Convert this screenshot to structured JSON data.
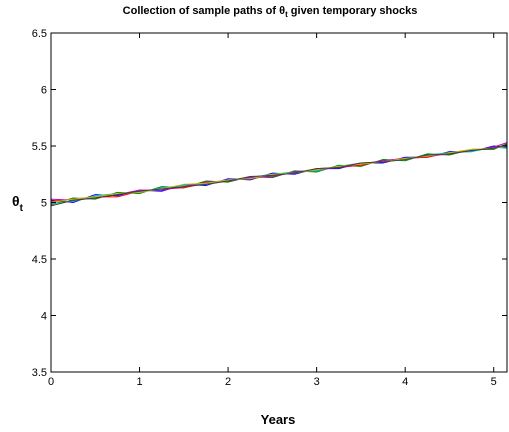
{
  "chart_data": {
    "type": "line",
    "title": {
      "main": "Collection of sample paths of θ",
      "sub": "t",
      "rest": " given temporary shocks"
    },
    "x_label": "Years",
    "y_label": {
      "main": "θ",
      "sub": "t"
    },
    "x": [
      0,
      0.25,
      0.5,
      0.75,
      1,
      1.25,
      1.5,
      1.75,
      2,
      2.25,
      2.5,
      2.75,
      3,
      3.25,
      3.5,
      3.75,
      4,
      4.25,
      4.5,
      4.75,
      5,
      5.15
    ],
    "series": [
      {
        "color": "#0000ff",
        "values": [
          5.02,
          5.0,
          5.07,
          5.06,
          5.11,
          5.1,
          5.16,
          5.15,
          5.21,
          5.2,
          5.26,
          5.25,
          5.3,
          5.3,
          5.35,
          5.35,
          5.4,
          5.4,
          5.45,
          5.45,
          5.5,
          5.49
        ]
      },
      {
        "color": "#008000",
        "values": [
          4.98,
          5.04,
          5.03,
          5.09,
          5.08,
          5.14,
          5.13,
          5.19,
          5.18,
          5.23,
          5.22,
          5.28,
          5.27,
          5.33,
          5.32,
          5.38,
          5.37,
          5.43,
          5.42,
          5.47,
          5.47,
          5.52
        ]
      },
      {
        "color": "#ff0000",
        "values": [
          5.01,
          5.03,
          5.05,
          5.05,
          5.1,
          5.12,
          5.13,
          5.17,
          5.2,
          5.21,
          5.24,
          5.26,
          5.3,
          5.31,
          5.33,
          5.37,
          5.39,
          5.4,
          5.44,
          5.46,
          5.48,
          5.51
        ]
      },
      {
        "color": "#00bfbf",
        "values": [
          4.99,
          5.01,
          5.06,
          5.08,
          5.09,
          5.13,
          5.15,
          5.16,
          5.19,
          5.22,
          5.25,
          5.27,
          5.28,
          5.32,
          5.35,
          5.36,
          5.38,
          5.42,
          5.44,
          5.45,
          5.49,
          5.48
        ]
      },
      {
        "color": "#bf00bf",
        "values": [
          5.03,
          5.02,
          5.04,
          5.07,
          5.11,
          5.11,
          5.14,
          5.18,
          5.19,
          5.22,
          5.23,
          5.27,
          5.29,
          5.31,
          5.34,
          5.37,
          5.39,
          5.41,
          5.43,
          5.46,
          5.49,
          5.53
        ]
      },
      {
        "color": "#bfbf00",
        "values": [
          5.0,
          5.03,
          5.05,
          5.08,
          5.09,
          5.12,
          5.16,
          5.17,
          5.2,
          5.21,
          5.25,
          5.26,
          5.29,
          5.32,
          5.34,
          5.36,
          5.39,
          5.41,
          5.44,
          5.47,
          5.48,
          5.5
        ]
      },
      {
        "color": "#404040",
        "values": [
          4.97,
          5.02,
          5.04,
          5.07,
          5.1,
          5.12,
          5.14,
          5.16,
          5.19,
          5.23,
          5.24,
          5.26,
          5.3,
          5.31,
          5.35,
          5.36,
          5.38,
          5.42,
          5.43,
          5.46,
          5.48,
          5.51
        ]
      }
    ],
    "xlim": [
      0,
      5.15
    ],
    "xticks": [
      0,
      1,
      2,
      3,
      4,
      5
    ],
    "ylim": [
      3.5,
      6.5
    ],
    "yticks": [
      3.5,
      4,
      4.5,
      5,
      5.5,
      6,
      6.5
    ],
    "grid": false
  }
}
